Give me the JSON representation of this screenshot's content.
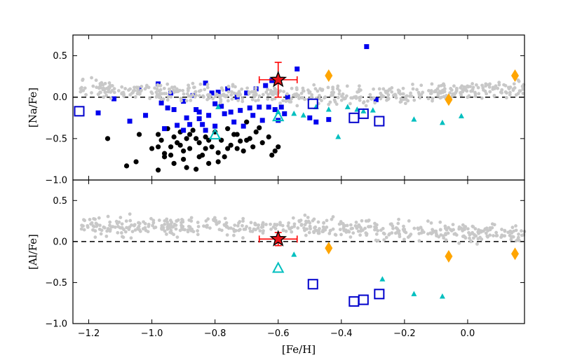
{
  "chart_data": [
    {
      "type": "scatter",
      "panel": "top",
      "ylabel": "[Na/Fe]",
      "xlabel": "",
      "xlim": [
        -1.25,
        0.18
      ],
      "ylim": [
        -1.0,
        0.75
      ],
      "yticks": [
        -1.0,
        -0.5,
        0.0,
        0.5
      ],
      "ytick_labels": [
        "−1.0",
        "−0.5",
        "0.0",
        "0.5"
      ],
      "reference_line": 0.0,
      "series": [
        {
          "name": "black-dots",
          "marker": "circle",
          "color": "#000000",
          "points": [
            [
              -1.14,
              -0.5
            ],
            [
              -1.08,
              -0.83
            ],
            [
              -1.05,
              -0.78
            ],
            [
              -1.04,
              -0.45
            ],
            [
              -1.0,
              -0.62
            ],
            [
              -0.98,
              -0.45
            ],
            [
              -0.98,
              -0.88
            ],
            [
              -0.97,
              -0.52
            ],
            [
              -0.96,
              -0.72
            ],
            [
              -0.95,
              -0.38
            ],
            [
              -0.94,
              -0.6
            ],
            [
              -0.93,
              -0.8
            ],
            [
              -0.92,
              -0.55
            ],
            [
              -0.91,
              -0.42
            ],
            [
              -0.9,
              -0.65
            ],
            [
              -0.9,
              -0.75
            ],
            [
              -0.89,
              -0.5
            ],
            [
              -0.88,
              -0.62
            ],
            [
              -0.87,
              -0.4
            ],
            [
              -0.86,
              -0.87
            ],
            [
              -0.85,
              -0.55
            ],
            [
              -0.84,
              -0.7
            ],
            [
              -0.83,
              -0.48
            ],
            [
              -0.82,
              -0.8
            ],
            [
              -0.81,
              -0.6
            ],
            [
              -0.8,
              -0.42
            ],
            [
              -0.79,
              -0.67
            ],
            [
              -0.78,
              -0.52
            ],
            [
              -0.77,
              -0.72
            ],
            [
              -0.76,
              -0.38
            ],
            [
              -0.75,
              -0.58
            ],
            [
              -0.74,
              -0.45
            ],
            [
              -0.73,
              -0.62
            ],
            [
              -0.72,
              -0.53
            ],
            [
              -0.71,
              -0.65
            ],
            [
              -0.7,
              -0.3
            ],
            [
              -0.69,
              -0.5
            ],
            [
              -0.68,
              -0.6
            ],
            [
              -0.67,
              -0.42
            ],
            [
              -0.66,
              -0.37
            ],
            [
              -0.65,
              -0.55
            ],
            [
              -0.63,
              -0.48
            ],
            [
              -0.62,
              -0.7
            ],
            [
              -0.61,
              -0.65
            ],
            [
              -0.6,
              -0.6
            ],
            [
              -0.96,
              -0.68
            ],
            [
              -0.93,
              -0.48
            ],
            [
              -0.89,
              -0.85
            ],
            [
              -0.86,
              -0.5
            ],
            [
              -0.83,
              -0.62
            ],
            [
              -0.94,
              -0.7
            ],
            [
              -0.91,
              -0.58
            ],
            [
              -0.88,
              -0.45
            ],
            [
              -0.85,
              -0.72
            ],
            [
              -0.98,
              -0.6
            ],
            [
              -0.82,
              -0.52
            ],
            [
              -0.79,
              -0.78
            ],
            [
              -0.76,
              -0.62
            ],
            [
              -0.73,
              -0.45
            ],
            [
              -0.7,
              -0.52
            ]
          ]
        },
        {
          "name": "blue-squares",
          "marker": "square",
          "color": "#0000ee",
          "points": [
            [
              -1.17,
              -0.19
            ],
            [
              -1.12,
              -0.02
            ],
            [
              -1.07,
              -0.29
            ],
            [
              -1.04,
              0.1
            ],
            [
              -1.02,
              -0.22
            ],
            [
              -0.98,
              0.16
            ],
            [
              -0.97,
              -0.07
            ],
            [
              -0.96,
              -0.38
            ],
            [
              -0.95,
              -0.13
            ],
            [
              -0.94,
              0.05
            ],
            [
              -0.93,
              -0.15
            ],
            [
              -0.92,
              -0.34
            ],
            [
              -0.9,
              -0.05
            ],
            [
              -0.89,
              -0.25
            ],
            [
              -0.88,
              -0.33
            ],
            [
              -0.87,
              0.02
            ],
            [
              -0.86,
              -0.15
            ],
            [
              -0.85,
              -0.26
            ],
            [
              -0.84,
              -0.33
            ],
            [
              -0.83,
              0.17
            ],
            [
              -0.82,
              -0.22
            ],
            [
              -0.81,
              0.05
            ],
            [
              -0.8,
              -0.35
            ],
            [
              -0.79,
              0.06
            ],
            [
              -0.78,
              -0.11
            ],
            [
              -0.77,
              -0.2
            ],
            [
              -0.76,
              0.1
            ],
            [
              -0.75,
              -0.18
            ],
            [
              -0.74,
              -0.3
            ],
            [
              -0.73,
              0.0
            ],
            [
              -0.72,
              -0.16
            ],
            [
              -0.71,
              -0.35
            ],
            [
              -0.7,
              0.05
            ],
            [
              -0.69,
              -0.13
            ],
            [
              -0.68,
              -0.22
            ],
            [
              -0.67,
              0.1
            ],
            [
              -0.66,
              -0.12
            ],
            [
              -0.65,
              -0.28
            ],
            [
              -0.64,
              0.14
            ],
            [
              -0.63,
              -0.12
            ],
            [
              -0.62,
              0.2
            ],
            [
              -0.61,
              -0.15
            ],
            [
              -0.6,
              -0.28
            ],
            [
              -0.59,
              -0.12
            ],
            [
              -0.58,
              -0.2
            ],
            [
              -0.57,
              0.0
            ],
            [
              -0.54,
              0.34
            ],
            [
              -0.5,
              -0.25
            ],
            [
              -0.48,
              -0.3
            ],
            [
              -0.44,
              -0.27
            ],
            [
              -0.32,
              0.61
            ],
            [
              -0.29,
              -0.03
            ],
            [
              -0.85,
              -0.18
            ],
            [
              -0.83,
              -0.4
            ],
            [
              -0.8,
              -0.08
            ],
            [
              -0.9,
              -0.4
            ]
          ]
        },
        {
          "name": "grey-dots",
          "marker": "circle",
          "color": "#c8c8c8",
          "description": "Dense band of field stars spanning [Fe/H] -1.2 to 0.18, concentrated near [Na/Fe] 0.0 to 0.25"
        },
        {
          "name": "cyan-triangles-small",
          "marker": "triangle",
          "color": "#00bfbf",
          "points": [
            [
              -0.79,
              -0.12
            ],
            [
              -0.6,
              -0.18
            ],
            [
              -0.55,
              -0.2
            ],
            [
              -0.52,
              -0.22
            ],
            [
              -0.48,
              -0.12
            ],
            [
              -0.44,
              -0.15
            ],
            [
              -0.41,
              -0.48
            ],
            [
              -0.38,
              -0.12
            ],
            [
              -0.35,
              -0.15
            ],
            [
              -0.33,
              -0.17
            ],
            [
              -0.3,
              -0.16
            ],
            [
              -0.17,
              -0.27
            ],
            [
              -0.08,
              -0.31
            ],
            [
              -0.02,
              -0.23
            ]
          ]
        },
        {
          "name": "cyan-triangles-open",
          "marker": "triangle-open",
          "color": "#00bfbf",
          "points": [
            [
              -0.8,
              -0.46
            ],
            [
              -0.6,
              -0.24
            ]
          ]
        },
        {
          "name": "blue-squares-open",
          "marker": "square-open",
          "color": "#0000cc",
          "points": [
            [
              -1.23,
              -0.17
            ],
            [
              -0.49,
              -0.08
            ],
            [
              -0.36,
              -0.25
            ],
            [
              -0.33,
              -0.2
            ],
            [
              -0.28,
              -0.29
            ]
          ]
        },
        {
          "name": "orange-diamonds",
          "marker": "diamond",
          "color": "#ffa500",
          "points": [
            [
              -0.44,
              0.26
            ],
            [
              -0.06,
              -0.03
            ],
            [
              0.15,
              0.26
            ]
          ]
        },
        {
          "name": "red-star",
          "marker": "star",
          "color": "#ff0000",
          "points": [
            [
              -0.6,
              0.21
            ]
          ],
          "xerr": 0.06,
          "yerr": 0.21
        }
      ]
    },
    {
      "type": "scatter",
      "panel": "bottom",
      "ylabel": "[Al/Fe]",
      "xlabel": "[Fe/H]",
      "xlim": [
        -1.25,
        0.18
      ],
      "ylim": [
        -1.0,
        0.75
      ],
      "xticks": [
        -1.2,
        -1.0,
        -0.8,
        -0.6,
        -0.4,
        -0.2,
        0.0
      ],
      "xtick_labels": [
        "−1.2",
        "−1.0",
        "−0.8",
        "−0.6",
        "−0.4",
        "−0.2",
        "0.0"
      ],
      "yticks": [
        -1.0,
        -0.5,
        0.0,
        0.5
      ],
      "ytick_labels": [
        "−1.0",
        "−0.5",
        "0.0",
        "0.5"
      ],
      "reference_line": 0.0,
      "series": [
        {
          "name": "grey-dots",
          "marker": "circle",
          "color": "#c8c8c8",
          "description": "Dense band of field stars spanning [Fe/H] -1.25 to 0.18, concentrated near [Al/Fe] 0.05 to 0.35"
        },
        {
          "name": "cyan-triangles-small",
          "marker": "triangle",
          "color": "#00bfbf",
          "points": [
            [
              -0.55,
              -0.16
            ],
            [
              -0.27,
              -0.46
            ],
            [
              -0.17,
              -0.64
            ],
            [
              -0.08,
              -0.67
            ]
          ]
        },
        {
          "name": "cyan-triangles-open",
          "marker": "triangle-open",
          "color": "#00bfbf",
          "points": [
            [
              -0.6,
              -0.33
            ]
          ]
        },
        {
          "name": "blue-squares-open",
          "marker": "square-open",
          "color": "#0000cc",
          "points": [
            [
              -0.49,
              -0.52
            ],
            [
              -0.36,
              -0.73
            ],
            [
              -0.33,
              -0.71
            ],
            [
              -0.28,
              -0.64
            ]
          ]
        },
        {
          "name": "orange-diamonds",
          "marker": "diamond",
          "color": "#ffa500",
          "points": [
            [
              -0.44,
              -0.08
            ],
            [
              -0.06,
              -0.18
            ],
            [
              0.15,
              -0.15
            ]
          ]
        },
        {
          "name": "red-star",
          "marker": "star",
          "color": "#ff0000",
          "points": [
            [
              -0.6,
              0.03
            ]
          ],
          "xerr": 0.06,
          "yerr": 0.08
        }
      ]
    }
  ]
}
